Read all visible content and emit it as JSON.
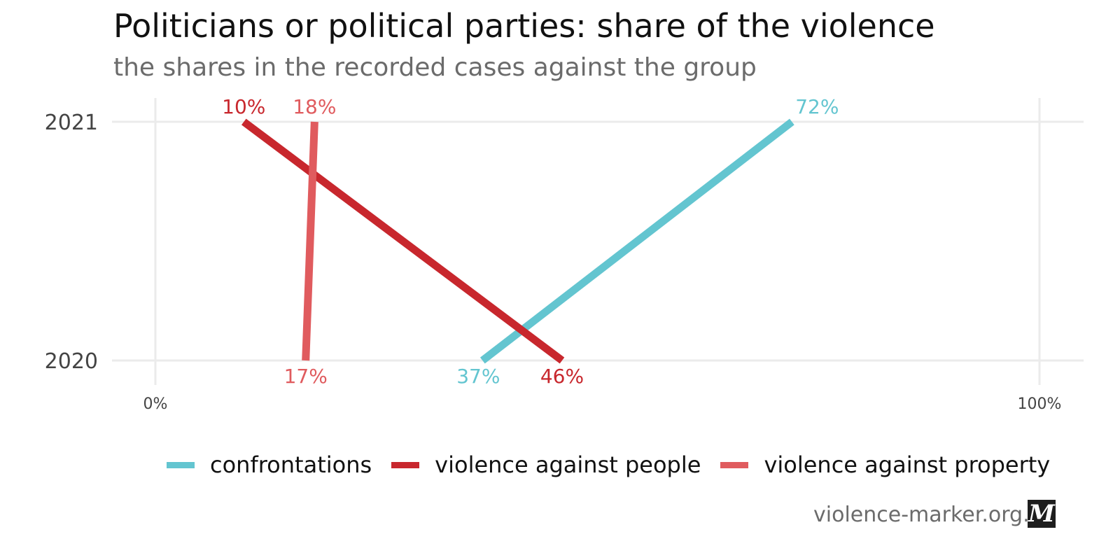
{
  "chart_data": {
    "type": "line",
    "title": "Politicians or political parties: share of the violence",
    "subtitle": "the shares in the recorded cases against the group",
    "categories": [
      "2020",
      "2021"
    ],
    "xlim": [
      0,
      100
    ],
    "x_ticks": [
      {
        "value": 0,
        "label": "0%"
      },
      {
        "value": 100,
        "label": "100%"
      }
    ],
    "grid": true,
    "legend_position": "bottom",
    "series": [
      {
        "name": "confrontations",
        "color": "#63c5d0",
        "values": [
          37,
          72
        ],
        "labels": [
          "37%",
          "72%"
        ]
      },
      {
        "name": "violence against people",
        "color": "#c8272d",
        "values": [
          46,
          10
        ],
        "labels": [
          "46%",
          "10%"
        ]
      },
      {
        "name": "violence against property",
        "color": "#e05b5e",
        "values": [
          17,
          18
        ],
        "labels": [
          "17%",
          "18%"
        ]
      }
    ]
  },
  "source": "violence-marker.org.ua",
  "logo_text": "M"
}
